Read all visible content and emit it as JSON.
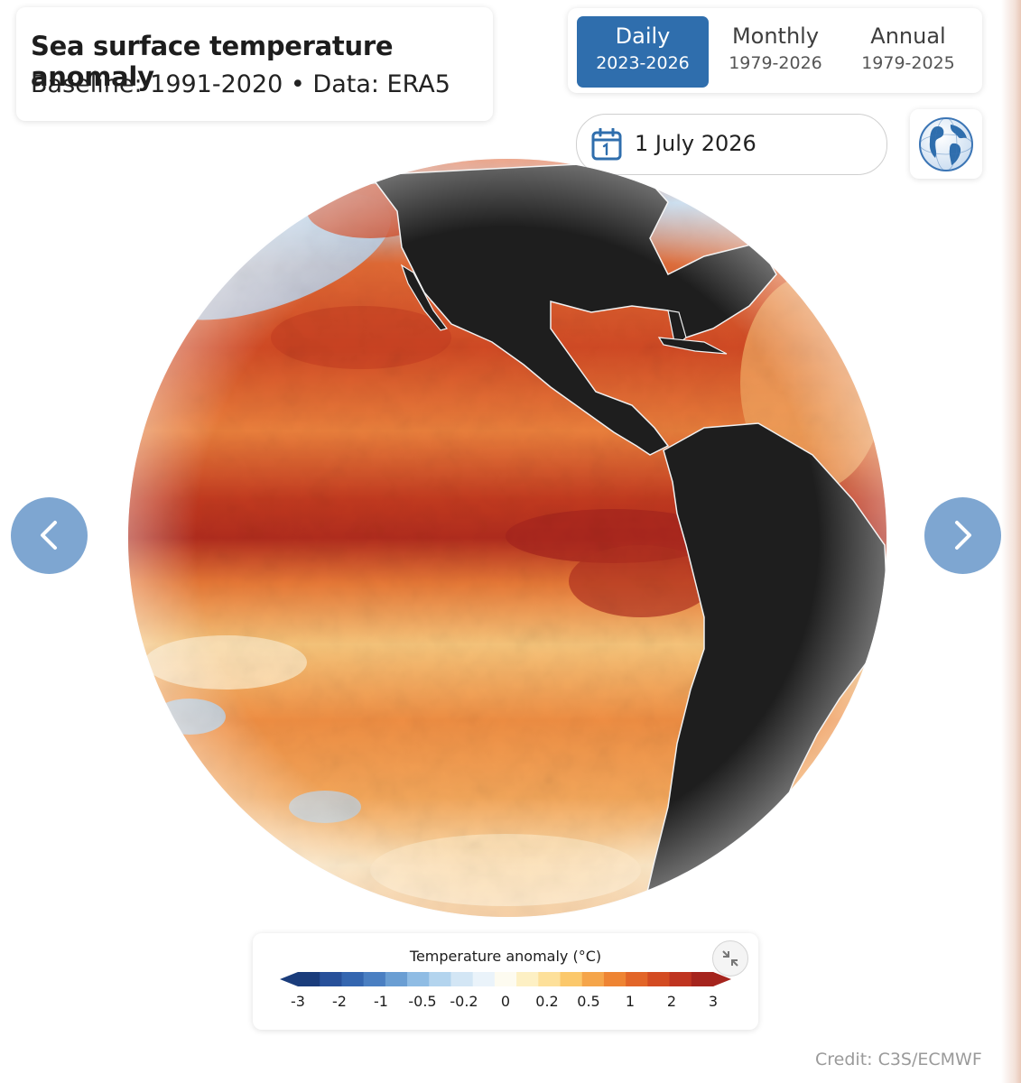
{
  "header": {
    "title": "Sea surface temperature anomaly",
    "subtitle": "Baseline: 1991-2020 • Data: ERA5"
  },
  "period_toggle": {
    "options": [
      {
        "label": "Daily",
        "range": "2023-2026",
        "selected": true
      },
      {
        "label": "Monthly",
        "range": "1979-2026",
        "selected": false
      },
      {
        "label": "Annual",
        "range": "1979-2025",
        "selected": false
      }
    ]
  },
  "date_picker": {
    "value": "1 July 2026",
    "icon": "calendar-icon"
  },
  "view_toggle": {
    "icon": "globe-icon"
  },
  "navigation": {
    "prev_icon": "chevron-left-icon",
    "next_icon": "chevron-right-icon"
  },
  "map": {
    "view": "orthographic globe",
    "land_color": "#1e1e1e",
    "ocean_layer": "sea surface temperature anomaly"
  },
  "legend": {
    "title": "Temperature anomaly (°C)",
    "ticks": [
      "-3",
      "-2",
      "-1",
      "-0.5",
      "-0.2",
      "0",
      "0.2",
      "0.5",
      "1",
      "2",
      "3"
    ],
    "colors": [
      "#1a3c7b",
      "#27509a",
      "#3466b0",
      "#4a7fc2",
      "#6a9ed3",
      "#8fbce4",
      "#b3d4ee",
      "#d3e6f5",
      "#eaf3fa",
      "#fdfbf0",
      "#fdf0c4",
      "#fde09a",
      "#fbc86b",
      "#f5a54a",
      "#ee8433",
      "#e26528",
      "#d34b22",
      "#bf3420",
      "#a5241d"
    ],
    "collapse_icon": "collapse-arrows-icon"
  },
  "credit": "Credit: C3S/ECMWF"
}
